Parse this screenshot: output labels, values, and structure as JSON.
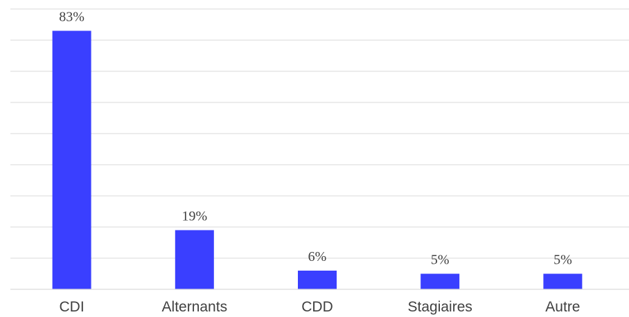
{
  "chart_data": {
    "type": "bar",
    "categories": [
      "CDI",
      "Alternants",
      "CDD",
      "Stagiaires",
      "Autre"
    ],
    "values": [
      83,
      19,
      6,
      5,
      5
    ],
    "data_labels": [
      "83%",
      "19%",
      "6%",
      "5%",
      "5%"
    ],
    "unit": "%",
    "ylim": [
      0,
      90
    ],
    "y_grid_step": 10,
    "grid": true,
    "legend": "none",
    "title": "",
    "xlabel": "",
    "ylabel": "",
    "colors": {
      "bar": "#3a3fff",
      "grid": "#d9d9d9",
      "text": "#404040"
    }
  }
}
